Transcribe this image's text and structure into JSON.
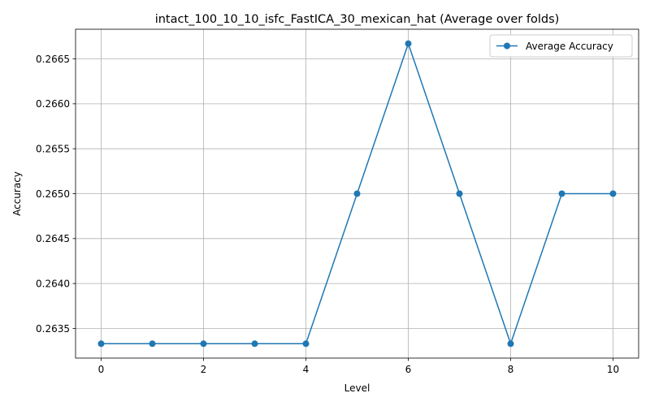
{
  "chart_data": {
    "type": "line",
    "title": "intact_100_10_10_isfc_FastICA_30_mexican_hat (Average over folds)",
    "xlabel": "Level",
    "ylabel": "Accuracy",
    "x": [
      0,
      1,
      2,
      3,
      4,
      5,
      6,
      7,
      8,
      9,
      10
    ],
    "series": [
      {
        "name": "Average Accuracy",
        "color": "#1f77b4",
        "marker": "circle",
        "values": [
          0.26333,
          0.26333,
          0.26333,
          0.26333,
          0.26333,
          0.265,
          0.26667,
          0.265,
          0.26333,
          0.265,
          0.265
        ]
      }
    ],
    "xlim": [
      -0.5,
      10.5
    ],
    "ylim": [
      0.26317,
      0.26683
    ],
    "xticks": [
      0,
      2,
      4,
      6,
      8,
      10
    ],
    "xtick_labels": [
      "0",
      "2",
      "4",
      "6",
      "8",
      "10"
    ],
    "yticks": [
      0.2635,
      0.264,
      0.2645,
      0.265,
      0.2655,
      0.266,
      0.2665
    ],
    "ytick_labels": [
      "0.2635",
      "0.2640",
      "0.2645",
      "0.2650",
      "0.2655",
      "0.2660",
      "0.2665"
    ],
    "grid": true,
    "legend_position": "top-right"
  }
}
